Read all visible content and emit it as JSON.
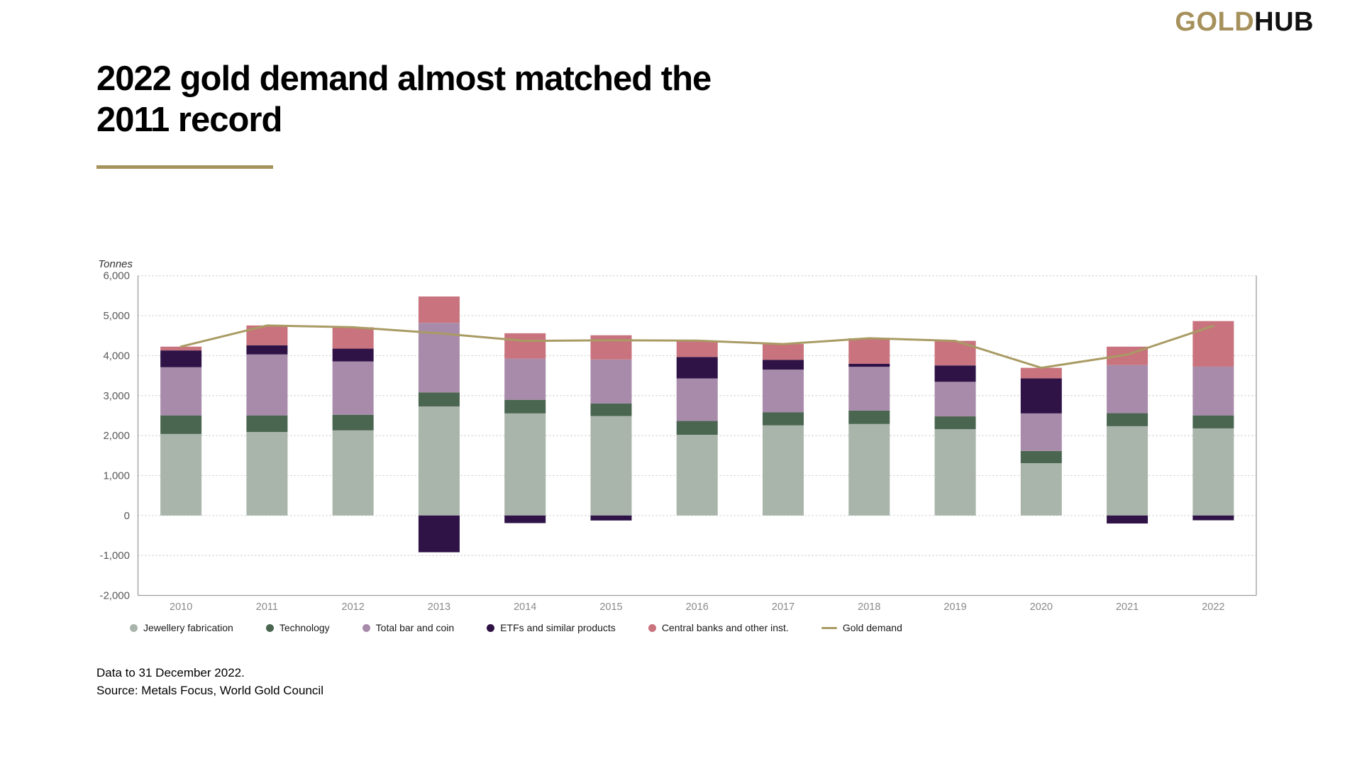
{
  "logo": {
    "gold": "GOLD",
    "hub": "HUB"
  },
  "title": {
    "line1": "2022 gold demand almost matched the",
    "line2": "2011 record"
  },
  "footer": {
    "line1": "Data to 31 December 2022.",
    "line2": "Source: Metals Focus, World Gold Council"
  },
  "colors": {
    "jewellery": "#A9B4AB",
    "technology": "#4A6550",
    "bar_and_coin": "#A88BAA",
    "etfs": "#2F1347",
    "central_banks": "#C8737D",
    "gold_demand_line": "#A99B64",
    "accent_gold": "#A6925C",
    "gridline": "#CCCCCC",
    "axis": "#9E9E9E",
    "y_label": "#595959",
    "x_label": "#8A8A8A"
  },
  "chart_data": {
    "type": "bar",
    "subtype": "stacked-bars-with-line-overlay",
    "unit_label": "Tonnes",
    "categories": [
      "2010",
      "2011",
      "2012",
      "2013",
      "2014",
      "2015",
      "2016",
      "2017",
      "2018",
      "2019",
      "2020",
      "2021",
      "2022"
    ],
    "y_ticks": [
      "6,000",
      "5,000",
      "4,000",
      "3,000",
      "2,000",
      "1,000",
      "0",
      "-1,000",
      "-2,000"
    ],
    "y_tick_values": [
      6000,
      5000,
      4000,
      3000,
      2000,
      1000,
      0,
      -1000,
      -2000
    ],
    "ylim": [
      -2000,
      6000
    ],
    "grid": "dotted-horizontal",
    "legend_position": "bottom",
    "series": [
      {
        "name": "Jewellery fabrication",
        "key": "jewellery",
        "values": [
          2040,
          2090,
          2130,
          2730,
          2555,
          2490,
          2020,
          2255,
          2290,
          2160,
          1310,
          2235,
          2180
        ]
      },
      {
        "name": "Technology",
        "key": "technology",
        "values": [
          465,
          415,
          390,
          350,
          340,
          315,
          345,
          330,
          335,
          320,
          305,
          325,
          325
        ]
      },
      {
        "name": "Total bar and coin",
        "key": "bar_and_coin",
        "values": [
          1205,
          1525,
          1335,
          1740,
          1030,
          1100,
          1065,
          1065,
          1095,
          865,
          940,
          1205,
          1220
        ]
      },
      {
        "name": "ETFs and similar products",
        "key": "etfs",
        "values": [
          420,
          230,
          320,
          -920,
          -190,
          -125,
          535,
          245,
          75,
          410,
          875,
          -200,
          -120
        ]
      },
      {
        "name": "Central banks and other inst.",
        "key": "central_banks",
        "values": [
          95,
          495,
          535,
          660,
          635,
          605,
          410,
          395,
          640,
          615,
          265,
          460,
          1140
        ]
      }
    ],
    "line_series": {
      "name": "Gold demand",
      "key": "gold_demand_line",
      "values": [
        4225,
        4755,
        4710,
        4560,
        4370,
        4385,
        4375,
        4290,
        4435,
        4370,
        3695,
        4025,
        4745
      ]
    }
  },
  "legend": {
    "items": [
      {
        "label": "Jewellery fabrication",
        "marker": "circle",
        "color_key": "jewellery"
      },
      {
        "label": "Technology",
        "marker": "circle",
        "color_key": "technology"
      },
      {
        "label": "Total bar and coin",
        "marker": "circle",
        "color_key": "bar_and_coin"
      },
      {
        "label": "ETFs and similar products",
        "marker": "circle",
        "color_key": "etfs"
      },
      {
        "label": "Central banks and other inst.",
        "marker": "circle",
        "color_key": "central_banks"
      },
      {
        "label": "Gold demand",
        "marker": "line",
        "color_key": "gold_demand_line"
      }
    ]
  }
}
